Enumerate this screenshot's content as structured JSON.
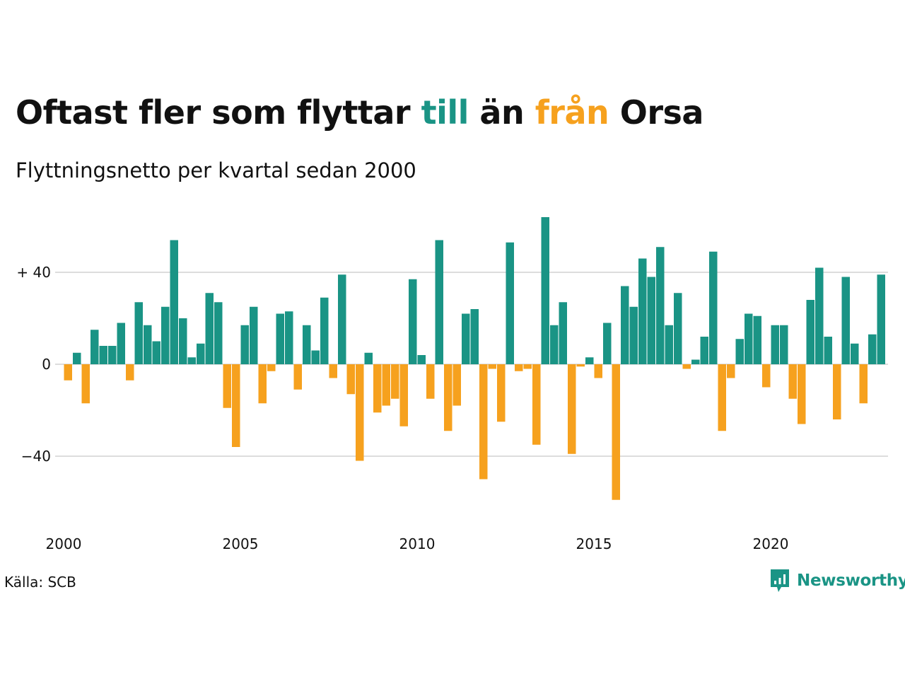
{
  "colors": {
    "positive": "#1a9485",
    "negative": "#f6a11e",
    "text": "#111111",
    "grid": "#dddddd"
  },
  "header": {
    "title_part1": "Oftast fler som flyttar ",
    "title_till": "till",
    "title_part2": " än ",
    "title_fran": "från",
    "title_part3": " Orsa",
    "subtitle": "Flyttningsnetto per kvartal sedan 2000"
  },
  "footer": {
    "source": "Källa: SCB",
    "brand": "Newsworthy"
  },
  "chart_data": {
    "type": "bar",
    "title": "Oftast fler som flyttar till än från Orsa",
    "subtitle": "Flyttningsnetto per kvartal sedan 2000",
    "x_start": 2000,
    "quarters_per_year": 4,
    "x_ticks": [
      2000,
      2005,
      2010,
      2015,
      2020
    ],
    "y_ticks": [
      -40,
      0,
      40
    ],
    "y_tick_labels": [
      "−40",
      "0",
      "+ 40"
    ],
    "ylim": [
      -62,
      66
    ],
    "grid": true,
    "legend": "none",
    "values": [
      -7,
      5,
      -17,
      15,
      8,
      8,
      18,
      -7,
      27,
      17,
      10,
      25,
      54,
      20,
      3,
      9,
      31,
      27,
      -19,
      -36,
      17,
      25,
      -17,
      -3,
      22,
      23,
      -11,
      17,
      6,
      29,
      -6,
      39,
      -13,
      -42,
      5,
      -21,
      -18,
      -15,
      -27,
      37,
      4,
      -15,
      54,
      -29,
      -18,
      22,
      24,
      -50,
      -2,
      -25,
      53,
      -3,
      -2,
      -35,
      64,
      17,
      27,
      -39,
      -1,
      3,
      -6,
      18,
      -59,
      34,
      25,
      46,
      38,
      51,
      17,
      31,
      -2,
      2,
      12,
      49,
      -29,
      -6,
      11,
      22,
      21,
      -10,
      17,
      17,
      -15,
      -26,
      28,
      42,
      12,
      -24,
      38,
      9,
      -17,
      13,
      39
    ]
  }
}
